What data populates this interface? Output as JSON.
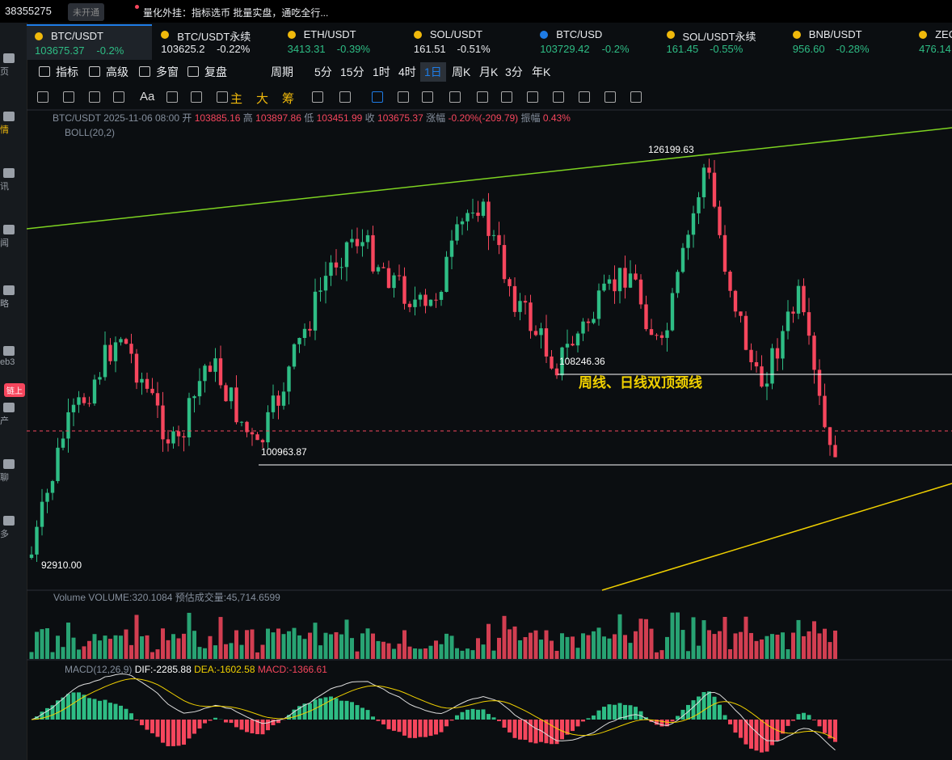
{
  "header": {
    "account": "38355275",
    "badge": "未开通",
    "notice": "量化外挂：指标选币 批量实盘，通吃全行..."
  },
  "sidebar": [
    "页",
    "情",
    "讯",
    "闻",
    "略",
    "eb3",
    "产",
    "聊",
    "多"
  ],
  "sidebar_badge": "链上",
  "tickers": [
    {
      "symbol": "BTC/USDT",
      "price": "103675.37",
      "change": "-0.2%",
      "color": "#2ebd85"
    },
    {
      "symbol": "BTC/USDT永续",
      "price": "103625.2",
      "change": "-0.22%",
      "color": "#eaecef"
    },
    {
      "symbol": "ETH/USDT",
      "price": "3413.31",
      "change": "-0.39%",
      "color": "#2ebd85"
    },
    {
      "symbol": "SOL/USDT",
      "price": "161.51",
      "change": "-0.51%",
      "color": "#eaecef"
    },
    {
      "symbol": "BTC/USD",
      "price": "103729.42",
      "change": "-0.2%",
      "color": "#2ebd85"
    },
    {
      "symbol": "SOL/USDT永续",
      "price": "161.45",
      "change": "-0.55%",
      "color": "#2ebd85"
    },
    {
      "symbol": "BNB/USDT",
      "price": "956.60",
      "change": "-0.28%",
      "color": "#2ebd85"
    },
    {
      "symbol": "ZEC",
      "price": "476.14",
      "change": "",
      "color": "#2ebd85"
    }
  ],
  "toolbar": [
    "指标",
    "高级",
    "多窗",
    "复盘",
    "周期",
    "5分",
    "15分",
    "1时",
    "4时",
    "1日",
    "周K",
    "月K",
    "3分",
    "年K"
  ],
  "toolbar_selected": "1日",
  "drawing_tools": [
    "Aa",
    "主",
    "大",
    "筹"
  ],
  "chart": {
    "symbol": "BTC/USDT",
    "datetime": "2025-11-06 08:00",
    "info": [
      {
        "label": "开",
        "value": "103885.16"
      },
      {
        "label": "高",
        "value": "103897.86"
      },
      {
        "label": "低",
        "value": "103451.99"
      },
      {
        "label": "收",
        "value": "103675.37"
      },
      {
        "label": "涨幅",
        "value": "-0.20%(-209.79)"
      },
      {
        "label": "振幅",
        "value": "0.43%"
      }
    ],
    "indicator": "BOLL(20,2)",
    "levels": [
      "126199.63",
      "108246.36",
      "100963.87",
      "92910.00"
    ],
    "annotation": "周线、日线双顶颈线"
  },
  "volume": {
    "name": "Volume",
    "value": "VOLUME:320.1084",
    "estimate": "预估成交量:45,714.6599"
  },
  "macd": {
    "name": "MACD(12,26,9)",
    "dif": "DIF:-2285.88",
    "dea": "DEA:-1602.58",
    "macd": "MACD:-1366.61"
  }
}
